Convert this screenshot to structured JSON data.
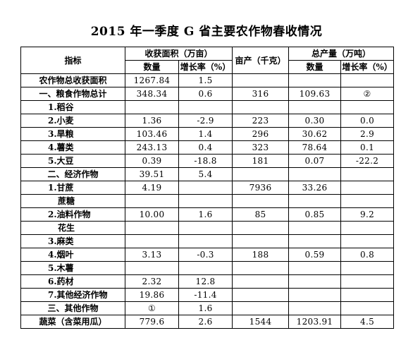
{
  "title": "2015 年一季度 G 省主要农作物春收情况",
  "header": {
    "indicator": "指标",
    "area_group": "收获面积（万亩）",
    "yield": "亩产（千克）",
    "output_group": "总产量（万吨）",
    "quantity": "数量",
    "growth": "增长率（%）"
  },
  "rows": [
    {
      "label": "农作物总收获面积",
      "area": "1267.84",
      "area_growth": "1.5",
      "yield": "",
      "output": "",
      "output_growth": ""
    },
    {
      "label": "一、粮食作物总计",
      "area": "348.34",
      "area_growth": "0.6",
      "yield": "316",
      "output": "109.63",
      "output_growth": "②"
    },
    {
      "label": "1.稻谷",
      "area": "",
      "area_growth": "",
      "yield": "",
      "output": "",
      "output_growth": ""
    },
    {
      "label": "2.小麦",
      "area": "1.36",
      "area_growth": "-2.9",
      "yield": "223",
      "output": "0.30",
      "output_growth": "0.0"
    },
    {
      "label": "3.旱粮",
      "area": "103.46",
      "area_growth": "1.4",
      "yield": "296",
      "output": "30.62",
      "output_growth": "2.9"
    },
    {
      "label": "4.薯类",
      "area": "243.13",
      "area_growth": "0.4",
      "yield": "323",
      "output": "78.64",
      "output_growth": "0.1"
    },
    {
      "label": "5.大豆",
      "area": "0.39",
      "area_growth": "-18.8",
      "yield": "181",
      "output": "0.07",
      "output_growth": "-22.2"
    },
    {
      "label": "二、经济作物",
      "area": "39.51",
      "area_growth": "5.4",
      "yield": "",
      "output": "",
      "output_growth": ""
    },
    {
      "label": "1.甘蔗",
      "area": "4.19",
      "area_growth": "",
      "yield": "7936",
      "output": "33.26",
      "output_growth": ""
    },
    {
      "label": "蔗糖",
      "area": "",
      "area_growth": "",
      "yield": "",
      "output": "",
      "output_growth": ""
    },
    {
      "label": "2.油料作物",
      "area": "10.00",
      "area_growth": "1.6",
      "yield": "85",
      "output": "0.85",
      "output_growth": "9.2"
    },
    {
      "label": "花生",
      "area": "",
      "area_growth": "",
      "yield": "",
      "output": "",
      "output_growth": ""
    },
    {
      "label": "3.麻类",
      "area": "",
      "area_growth": "",
      "yield": "",
      "output": "",
      "output_growth": ""
    },
    {
      "label": "4.烟叶",
      "area": "3.13",
      "area_growth": "-0.3",
      "yield": "188",
      "output": "0.59",
      "output_growth": "0.8"
    },
    {
      "label": "5.木薯",
      "area": "",
      "area_growth": "",
      "yield": "",
      "output": "",
      "output_growth": ""
    },
    {
      "label": "6.药材",
      "area": "2.32",
      "area_growth": "12.8",
      "yield": "",
      "output": "",
      "output_growth": ""
    },
    {
      "label": "7.其他经济作物",
      "area": "19.86",
      "area_growth": "-11.4",
      "yield": "",
      "output": "",
      "output_growth": ""
    },
    {
      "label": "三、其他作物",
      "area": "①",
      "area_growth": "1.6",
      "yield": "",
      "output": "",
      "output_growth": ""
    },
    {
      "label": "蔬菜（含菜用瓜）",
      "area": "779.6",
      "area_growth": "2.6",
      "yield": "1544",
      "output": "1203.91",
      "output_growth": "4.5"
    }
  ]
}
